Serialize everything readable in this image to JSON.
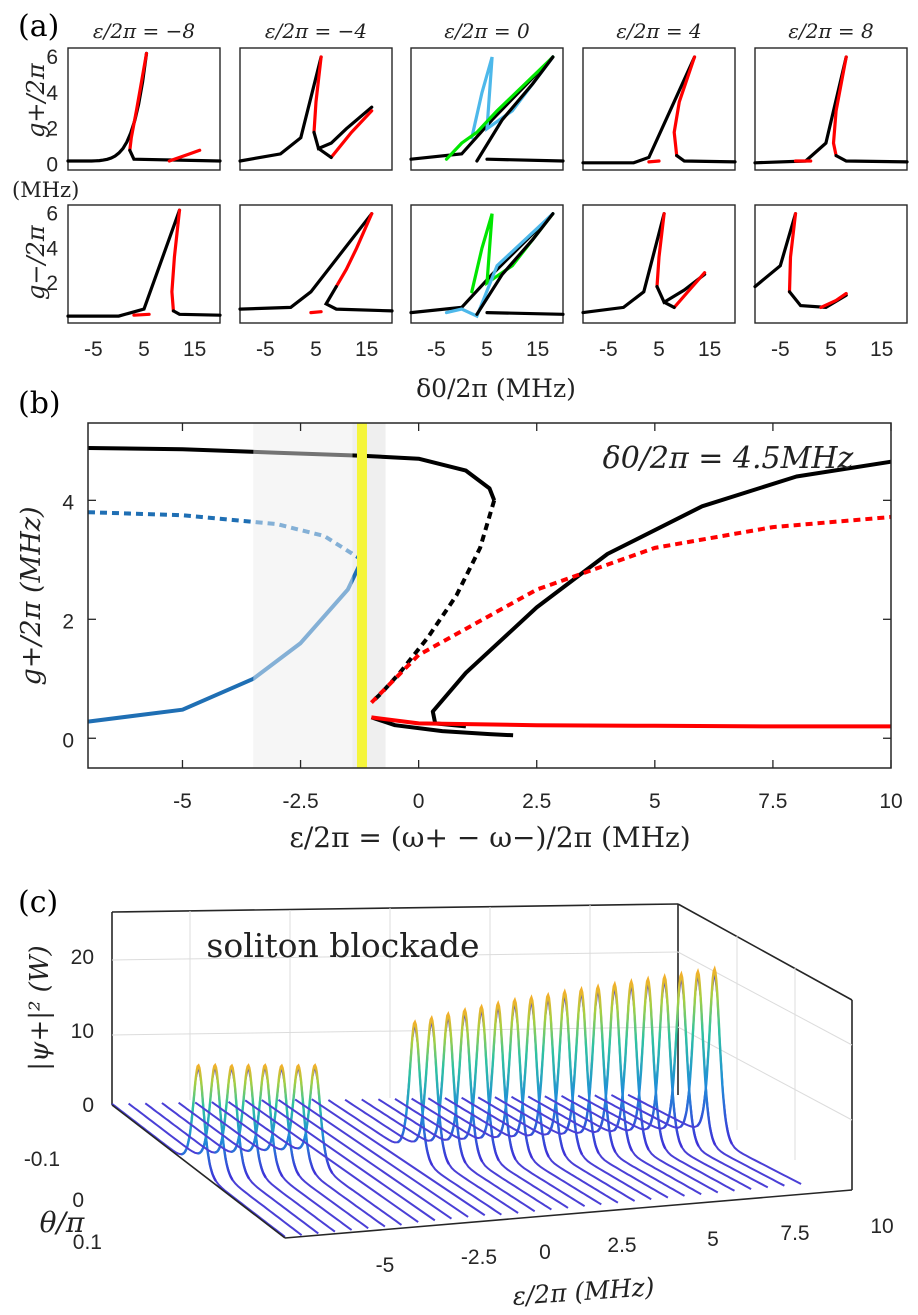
{
  "panel_a": {
    "label": "(a)",
    "column_titles": [
      "ε/2π = −8",
      "ε/2π = −4",
      "ε/2π = 0",
      "ε/2π = 4",
      "ε/2π = 8"
    ],
    "ylabel_top": "g+/2π",
    "ylabel_bottom": "g−/2π",
    "unit_label": "(MHz)",
    "yticks_top": [
      "0",
      "2",
      "4",
      "6"
    ],
    "yticks_bottom": [
      "2",
      "4",
      "6"
    ],
    "xticks": [
      "-5",
      "5",
      "15"
    ],
    "xlabel": "δ0/2π (MHz)"
  },
  "panel_b": {
    "label": "(b)",
    "annotation": "δ0/2π = 4.5MHz",
    "xlabel": "ε/2π = (ω+ − ω−)/2π (MHz)",
    "ylabel": "g+/2π (MHz)",
    "xticks": [
      "-5",
      "-2.5",
      "0",
      "2.5",
      "5",
      "7.5",
      "10"
    ],
    "yticks": [
      "0",
      "2",
      "4"
    ]
  },
  "panel_c": {
    "label": "(c)",
    "annotation": "soliton blockade",
    "zlabel": "|ψ+|² (W)",
    "ylabel": "θ/π",
    "xlabel": "ε/2π (MHz)",
    "zticks": [
      "0",
      "10",
      "20"
    ],
    "yticks": [
      "-0.1",
      "0",
      "0.1"
    ],
    "xticks": [
      "-5",
      "-2.5",
      "0",
      "2.5",
      "5",
      "7.5",
      "10"
    ]
  },
  "chart_data": [
    {
      "type": "line",
      "panel": "a",
      "subplots": "2 rows (g+, g−) × 5 columns (ε/2π = -8, -4, 0, 4, 8 MHz)",
      "x_range": [
        -10,
        20
      ],
      "y_range": [
        0,
        6.5
      ],
      "peaks_g_plus": [
        {
          "epsilon": -8,
          "peak_delta0": 6,
          "peak_g": 6.2,
          "minor_branch_end_g": 0.8
        },
        {
          "epsilon": -4,
          "peak_delta0": 6,
          "peak_g": 6.0,
          "minor_branch_end_g": 3.0
        },
        {
          "epsilon": 0,
          "peak_delta0": 18,
          "peak_g": 6.0,
          "minor_branch_end_g": 6.0
        },
        {
          "epsilon": 4,
          "peak_delta0": 6,
          "peak_g": 6.0,
          "minor_branch_end_g": 0.1
        },
        {
          "epsilon": 8,
          "peak_delta0": 6,
          "peak_g": 6.0,
          "minor_branch_end_g": 0.1
        }
      ],
      "colors": {
        "stable": "#000000",
        "unstable": "#ff0000",
        "symmetric_a": "#4db8ea",
        "symmetric_b": "#00e600"
      }
    },
    {
      "type": "line",
      "panel": "b",
      "x_range": [
        -7,
        10
      ],
      "y_range": [
        -0.5,
        5.3
      ],
      "grey_band": [
        -3.5,
        -0.7
      ],
      "yellow_line_x": -1.2,
      "series": [
        {
          "name": "",
          "color": "#000000",
          "style": "solid",
          "x": [
            -7,
            -5,
            -3,
            -1.2,
            0,
            1,
            1.5,
            1.6
          ],
          "y": [
            4.88,
            4.86,
            4.8,
            4.75,
            4.7,
            4.5,
            4.2,
            4.0
          ]
        },
        {
          "name": "",
          "color": "#000000",
          "style": "dashed",
          "x": [
            1.6,
            1.3,
            0.8,
            0.2,
            -0.4,
            -0.8,
            -1.0
          ],
          "y": [
            4.0,
            3.2,
            2.4,
            1.7,
            1.1,
            0.75,
            0.6
          ]
        },
        {
          "name": "",
          "color": "#000000",
          "style": "solid",
          "x": [
            10,
            8,
            6,
            4,
            2.5,
            1,
            0.3,
            0.35,
            1
          ],
          "y": [
            4.65,
            4.4,
            3.9,
            3.1,
            2.2,
            1.1,
            0.45,
            0.25,
            0.2
          ]
        },
        {
          "name": "",
          "color": "#000000",
          "style": "solid",
          "x": [
            -1.0,
            -0.5,
            0.5,
            1.5,
            2
          ],
          "y": [
            0.35,
            0.22,
            0.12,
            0.07,
            0.05
          ]
        },
        {
          "name": "",
          "color": "#1f6fb4",
          "style": "dashed",
          "x": [
            -7,
            -5,
            -3,
            -2,
            -1.2
          ],
          "y": [
            3.8,
            3.75,
            3.6,
            3.4,
            3.0
          ]
        },
        {
          "name": "",
          "color": "#1f6fb4",
          "style": "solid",
          "x": [
            -7,
            -5,
            -3.5,
            -2.5,
            -1.5,
            -1.2
          ],
          "y": [
            0.28,
            0.48,
            1.0,
            1.6,
            2.5,
            3.0
          ]
        },
        {
          "name": "",
          "color": "#ff0000",
          "style": "solid",
          "x": [
            -1.0,
            0,
            2.5,
            5,
            7.5,
            10
          ],
          "y": [
            0.35,
            0.25,
            0.22,
            0.21,
            0.2,
            0.2
          ]
        },
        {
          "name": "",
          "color": "#ff0000",
          "style": "dashed",
          "x": [
            -1.0,
            0,
            2.5,
            5,
            7.5,
            10
          ],
          "y": [
            0.6,
            1.4,
            2.5,
            3.2,
            3.55,
            3.72
          ]
        }
      ]
    },
    {
      "type": "line",
      "panel": "c",
      "subtype": "3d waterfall",
      "x_range": [
        -7,
        10
      ],
      "theta_range": [
        -0.15,
        0.15
      ],
      "z_range": [
        0,
        25
      ],
      "blockade_range": [
        -3.5,
        -0.7
      ],
      "peak_epsilons": [
        -7,
        -6.5,
        -6,
        -5.5,
        -5,
        -4.5,
        -4,
        -3.5,
        -0.5,
        0,
        0.5,
        1,
        1.5,
        2,
        2.5,
        3,
        3.5,
        4,
        4.5,
        5,
        5.5,
        6,
        6.5,
        7,
        7.5,
        8,
        8.5
      ],
      "peak_heights_W": [
        13.8,
        13.7,
        13.5,
        13.4,
        13.3,
        13.1,
        13.0,
        12.9,
        17.8,
        18.2,
        18.6,
        19.0,
        19.3,
        19.6,
        19.9,
        20.1,
        20.3,
        20.6,
        20.8,
        21.0,
        21.2,
        21.4,
        21.6,
        21.8,
        22.0,
        22.2,
        22.4
      ]
    }
  ]
}
